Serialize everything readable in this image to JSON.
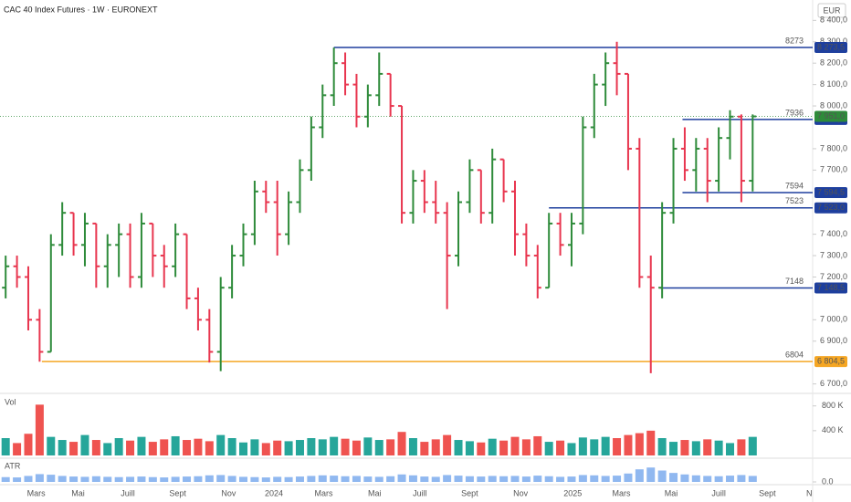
{
  "header": {
    "title": "CAC 40 Index Futures · 1W · EURONEXT",
    "currency": "EUR"
  },
  "chart_data": [
    {
      "type": "ohlc",
      "xlim": [
        -0.5,
        71.3
      ],
      "xticks": [
        {
          "value": 2.7,
          "label": "Mars"
        },
        {
          "value": 6.4,
          "label": "Mai"
        },
        {
          "value": 10.8,
          "label": "Juill"
        },
        {
          "value": 15.2,
          "label": "Sept"
        },
        {
          "value": 19.7,
          "label": "Nov"
        },
        {
          "value": 23.7,
          "label": "2024"
        },
        {
          "value": 28.1,
          "label": "Mars"
        },
        {
          "value": 32.6,
          "label": "Mai"
        },
        {
          "value": 36.6,
          "label": "Juill"
        },
        {
          "value": 41,
          "label": "Sept"
        },
        {
          "value": 45.5,
          "label": "Nov"
        },
        {
          "value": 50.1,
          "label": "2025"
        },
        {
          "value": 54.4,
          "label": "Mars"
        },
        {
          "value": 58.8,
          "label": "Mai"
        },
        {
          "value": 63,
          "label": "Juill"
        },
        {
          "value": 67.3,
          "label": "Sept"
        },
        {
          "value": 71,
          "label": "N"
        }
      ],
      "ylim": [
        6660,
        8410
      ],
      "yticks": [
        {
          "value": 8400,
          "label": "8 400,0"
        },
        {
          "value": 8300,
          "label": "8 300,0"
        },
        {
          "value": 8200,
          "label": "8 200,0"
        },
        {
          "value": 8100,
          "label": "8 100,0"
        },
        {
          "value": 8000,
          "label": "8 000,0"
        },
        {
          "value": 7800,
          "label": "7 800,0"
        },
        {
          "value": 7700,
          "label": "7 700,0"
        },
        {
          "value": 7400,
          "label": "7 400,0"
        },
        {
          "value": 7300,
          "label": "7 300,0"
        },
        {
          "value": 7200,
          "label": "7 200,0"
        },
        {
          "value": 7000,
          "label": "7 000,0"
        },
        {
          "value": 6900,
          "label": "6 900,0"
        },
        {
          "value": 6700,
          "label": "6 700,0"
        }
      ],
      "up_color": "#2e8b3a",
      "down_color": "#e8364f",
      "open": [
        7150,
        7250,
        7200,
        7000,
        6850,
        7350,
        7500,
        7350,
        7450,
        7250,
        7350,
        7400,
        7200,
        7450,
        7300,
        7250,
        7400,
        7100,
        7000,
        6850,
        7150,
        7300,
        7400,
        7600,
        7550,
        7400,
        7550,
        7700,
        7900,
        8050,
        8200,
        8100,
        7950,
        8050,
        8150,
        8000,
        7500,
        7650,
        7550,
        7500,
        7300,
        7550,
        7700,
        7500,
        7750,
        7600,
        7400,
        7300,
        7150,
        7450,
        7350,
        7450,
        7900,
        8100,
        8200,
        8150,
        7800,
        7200,
        7150,
        7500,
        7800,
        7700,
        7800,
        7650,
        7850,
        7950,
        7650
      ],
      "high": [
        7300,
        7300,
        7250,
        7050,
        7400,
        7550,
        7500,
        7500,
        7450,
        7400,
        7450,
        7450,
        7500,
        7450,
        7350,
        7450,
        7400,
        7150,
        7050,
        7200,
        7350,
        7450,
        7650,
        7650,
        7650,
        7600,
        7750,
        7950,
        8100,
        8273,
        8250,
        8150,
        8100,
        8250,
        8150,
        8000,
        7700,
        7700,
        7650,
        7550,
        7600,
        7750,
        7700,
        7800,
        7750,
        7650,
        7450,
        7350,
        7500,
        7500,
        7500,
        7950,
        8150,
        8250,
        8300,
        8150,
        7850,
        7300,
        7550,
        7850,
        7900,
        7850,
        7850,
        7900,
        7980,
        7960,
        7960
      ],
      "low": [
        7100,
        7150,
        6950,
        6804,
        6850,
        7300,
        7300,
        7250,
        7150,
        7150,
        7200,
        7150,
        7150,
        7200,
        7150,
        7200,
        7050,
        6950,
        6800,
        6760,
        7100,
        7250,
        7350,
        7500,
        7300,
        7350,
        7500,
        7650,
        7850,
        8000,
        8050,
        7900,
        7900,
        8000,
        7950,
        7450,
        7450,
        7500,
        7450,
        7050,
        7250,
        7500,
        7450,
        7450,
        7550,
        7300,
        7250,
        7100,
        7150,
        7300,
        7250,
        7400,
        7850,
        8000,
        8050,
        7700,
        7150,
        6750,
        7100,
        7450,
        7650,
        7600,
        7550,
        7600,
        7750,
        7550,
        7600
      ],
      "close": [
        7250,
        7200,
        7000,
        6850,
        7350,
        7500,
        7350,
        7450,
        7250,
        7350,
        7400,
        7200,
        7450,
        7300,
        7250,
        7400,
        7100,
        7000,
        6850,
        7150,
        7300,
        7400,
        7600,
        7550,
        7400,
        7550,
        7700,
        7900,
        8050,
        8200,
        8100,
        7950,
        8050,
        8150,
        8000,
        7500,
        7650,
        7550,
        7500,
        7300,
        7550,
        7700,
        7500,
        7750,
        7600,
        7400,
        7300,
        7150,
        7450,
        7350,
        7450,
        7900,
        8100,
        8200,
        8150,
        7800,
        7200,
        7150,
        7500,
        7800,
        7700,
        7800,
        7650,
        7850,
        7950,
        7650,
        7951
      ],
      "levels": [
        {
          "value": 8273.5,
          "name": "8273",
          "badge": "8 273,5",
          "from": 29,
          "color": "#1e3f9e"
        },
        {
          "value": 7936.5,
          "name": "7936",
          "badge": "7 936,5",
          "from": 59.8,
          "color": "#1e3f9e"
        },
        {
          "value": 7594.5,
          "name": "7594",
          "badge": "7 594,5",
          "from": 59.8,
          "color": "#1e3f9e"
        },
        {
          "value": 7523,
          "name": "7523",
          "badge": "7 523,0",
          "from": 48,
          "color": "#1e3f9e"
        },
        {
          "value": 7148.5,
          "name": "7148",
          "badge": "7 148,5",
          "from": 57.8,
          "color": "#1e3f9e"
        },
        {
          "value": 6804.5,
          "name": "6804",
          "badge": "6 804,5",
          "from": 3.2,
          "color": "#f5a623"
        }
      ],
      "last": {
        "value": 7951,
        "badge": "7 951,0",
        "color": "#2e8b3a"
      }
    },
    {
      "type": "volume",
      "title": "Vol",
      "ylim": [
        0,
        840
      ],
      "yticks": [
        {
          "value": 800,
          "label": "800 K"
        },
        {
          "value": 400,
          "label": "400 K"
        }
      ],
      "up_color": "#26a69a",
      "down_color": "#ef5350",
      "values": [
        280,
        200,
        350,
        820,
        300,
        250,
        220,
        330,
        250,
        200,
        280,
        240,
        300,
        220,
        260,
        310,
        250,
        270,
        230,
        330,
        280,
        210,
        260,
        200,
        240,
        230,
        250,
        280,
        260,
        300,
        270,
        240,
        290,
        250,
        260,
        380,
        280,
        220,
        260,
        330,
        250,
        230,
        210,
        270,
        240,
        300,
        260,
        310,
        220,
        240,
        200,
        290,
        260,
        300,
        280,
        330,
        360,
        400,
        280,
        220,
        250,
        230,
        260,
        240,
        200,
        260,
        300
      ]
    },
    {
      "type": "atr",
      "title": "ATR",
      "ylim": [
        0,
        700
      ],
      "yticks": [
        {
          "value": 0,
          "label": "0.0"
        }
      ],
      "color": "#90b8f0",
      "values": [
        160,
        150,
        200,
        260,
        240,
        200,
        180,
        170,
        190,
        170,
        160,
        170,
        180,
        160,
        150,
        170,
        180,
        190,
        220,
        230,
        200,
        170,
        160,
        150,
        170,
        160,
        180,
        200,
        220,
        210,
        190,
        200,
        180,
        170,
        190,
        250,
        220,
        180,
        170,
        230,
        210,
        190,
        180,
        200,
        190,
        200,
        180,
        210,
        190,
        170,
        180,
        230,
        220,
        200,
        210,
        280,
        420,
        480,
        380,
        300,
        250,
        220,
        200,
        190,
        210,
        230,
        200
      ]
    }
  ]
}
